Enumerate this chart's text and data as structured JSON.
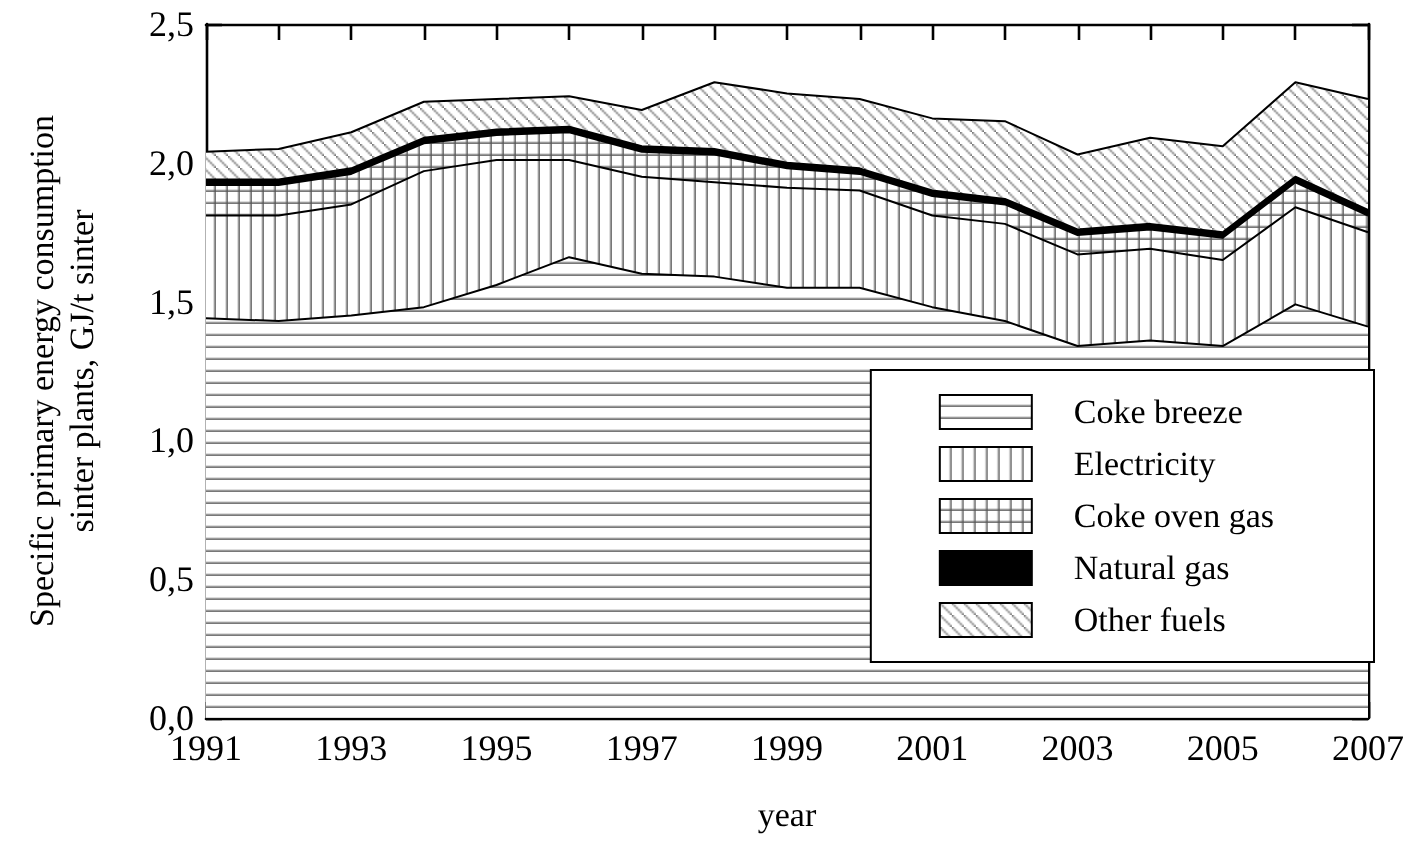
{
  "chart_data": {
    "type": "area",
    "stacked": true,
    "xlabel": "year",
    "ylabel": "Specific primary energy consumption\nsinter plants, GJ/t sinter",
    "legend": "bottom right",
    "grid": false,
    "x": [
      1991,
      1992,
      1993,
      1994,
      1995,
      1996,
      1997,
      1998,
      1999,
      2000,
      2001,
      2002,
      2003,
      2004,
      2005,
      2006,
      2007
    ],
    "series": [
      {
        "name": "Coke breeze",
        "color": "#ffffff",
        "values": [
          1.44,
          1.43,
          1.45,
          1.48,
          1.56,
          1.66,
          1.6,
          1.59,
          1.55,
          1.55,
          1.48,
          1.43,
          1.34,
          1.36,
          1.34,
          1.49,
          1.41
        ]
      },
      {
        "name": "Electricity",
        "color": "#ffffff",
        "values": [
          0.37,
          0.38,
          0.4,
          0.49,
          0.45,
          0.35,
          0.35,
          0.34,
          0.36,
          0.35,
          0.33,
          0.35,
          0.33,
          0.33,
          0.31,
          0.35,
          0.34
        ]
      },
      {
        "name": "Coke oven gas",
        "color": "#ffffff",
        "values": [
          0.11,
          0.11,
          0.11,
          0.1,
          0.09,
          0.1,
          0.09,
          0.1,
          0.07,
          0.06,
          0.07,
          0.07,
          0.07,
          0.07,
          0.08,
          0.09,
          0.06
        ]
      },
      {
        "name": "Natural gas",
        "color": "#000000",
        "values": [
          0.02,
          0.02,
          0.02,
          0.02,
          0.02,
          0.02,
          0.02,
          0.02,
          0.02,
          0.02,
          0.02,
          0.02,
          0.02,
          0.02,
          0.02,
          0.02,
          0.02
        ]
      },
      {
        "name": "Other fuels",
        "color": "#ffffff",
        "values": [
          0.1,
          0.11,
          0.13,
          0.13,
          0.11,
          0.11,
          0.13,
          0.24,
          0.25,
          0.25,
          0.26,
          0.28,
          0.27,
          0.31,
          0.31,
          0.34,
          0.4
        ]
      }
    ],
    "xlim": [
      1991,
      2007
    ],
    "xticks": [
      1991,
      {
        "value": 1992,
        "label": null
      },
      1993,
      {
        "value": 1994,
        "label": null
      },
      1995,
      {
        "value": 1996,
        "label": null
      },
      1997,
      {
        "value": 1998,
        "label": null
      },
      1999,
      {
        "value": 2000,
        "label": null
      },
      2001,
      {
        "value": 2002,
        "label": null
      },
      2003,
      {
        "value": 2004,
        "label": null
      },
      2005,
      {
        "value": 2006,
        "label": null
      },
      2007
    ],
    "ylim": [
      0,
      2.5
    ],
    "yticks": [
      {
        "value": 0,
        "label": "0,0"
      },
      {
        "value": 0.5,
        "label": "0,5"
      },
      {
        "value": 1,
        "label": "1,0"
      },
      {
        "value": 1.5,
        "label": "1,5"
      },
      {
        "value": 2,
        "label": "2,0"
      },
      {
        "value": 2.5,
        "label": "2,5"
      }
    ]
  }
}
